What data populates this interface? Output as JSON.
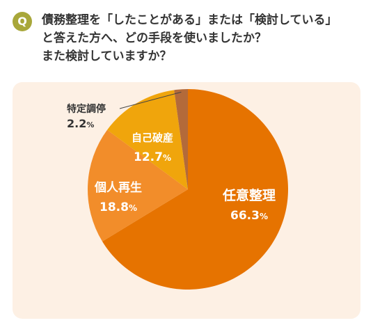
{
  "question": {
    "badge": "Q",
    "text": "債務整理を「したことがある」または「検討している」\nと答えた方へ、どの手段を使いましたか？\nまた検討していますか？"
  },
  "colors": {
    "badge": "#a8a73a",
    "panel": "#fdf0e4",
    "text": "#333333",
    "label_on_slice": "#ffffff",
    "callout_line": "#444444"
  },
  "chart_data": {
    "type": "pie",
    "unit": "%",
    "start_angle_deg": 0,
    "direction": "clockwise",
    "slices": [
      {
        "label": "任意整理",
        "value": 66.3,
        "value_text": "66.3",
        "color": "#e67300"
      },
      {
        "label": "個人再生",
        "value": 18.8,
        "value_text": "18.8",
        "color": "#f28d2a"
      },
      {
        "label": "自己破産",
        "value": 12.7,
        "value_text": "12.7",
        "color": "#f0a50c"
      },
      {
        "label": "特定調停",
        "value": 2.2,
        "value_text": "2.2",
        "color": "#b36a3a"
      }
    ]
  }
}
